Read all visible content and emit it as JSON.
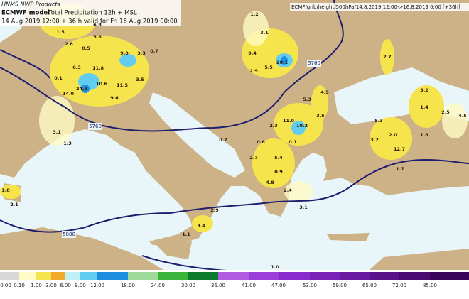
{
  "header": {
    "product": "HNMS NWP Products",
    "model": "ECMWF model",
    "field": "Total Precipitation 12h + MSL",
    "validity": "14 Aug 2019 12:00 + 36 h valid for Fri 16 Aug 2019 00:00",
    "source": "ECMF/grib/height/500hPa/14.8.2019 12:00->16.8.2019 0:00 [+36h]"
  },
  "contour_labels": [
    "5760",
    "5760",
    "5880"
  ],
  "precipitation_labels": [
    "1.2",
    "3.1",
    "9.4",
    "2.9",
    "5.5",
    "20.1",
    "2.7",
    "2.6",
    "0.5",
    "5.8",
    "6.8",
    "1.5",
    "6.3",
    "11.8",
    "9.0",
    "3.3",
    "0.7",
    "14.0",
    "24.9",
    "10.6",
    "11.5",
    "3.5",
    "9.6",
    "0.1",
    "3.1",
    "1.3",
    "5.3",
    "4.9",
    "3.5",
    "3.2",
    "1.4",
    "2.5",
    "4.5",
    "5.3",
    "2.0",
    "1.8",
    "3.2",
    "12.7",
    "11.0",
    "10.2",
    "2.3",
    "0.7",
    "0.6",
    "2.7",
    "5.4",
    "0.9",
    "4.8",
    "2.4",
    "1.7",
    "0.1",
    "3.1",
    "1.8",
    "2.1",
    "2.9",
    "1.1",
    "3.4",
    "1.0"
  ],
  "legend": {
    "labels": [
      "0.00",
      "0.10",
      "1.00",
      "3.00",
      "6.00",
      "9.00",
      "12.00",
      "18.00",
      "24.00",
      "30.00",
      "36.00",
      "41.00",
      "47.00",
      "53.00",
      "59.00",
      "65.00",
      "72.00",
      "85.00"
    ],
    "colors": [
      "#d8d8d8",
      "#fffbc4",
      "#f6e44c",
      "#f3a92a",
      "#bff0f7",
      "#62cdf0",
      "#1e8fe0",
      "#9ed99a",
      "#3bb33b",
      "#0b7a2c",
      "#b05ce0",
      "#9a3fd8",
      "#8a2bd0",
      "#7a22b8",
      "#6a1aa0",
      "#5a128a",
      "#4a0c72",
      "#3a065c"
    ]
  }
}
